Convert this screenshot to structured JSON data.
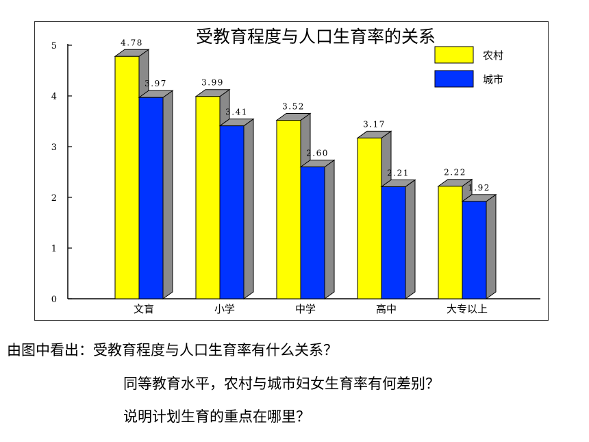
{
  "chart_data": {
    "type": "bar",
    "title": "受教育程度与人口生育率的关系",
    "categories": [
      "文盲",
      "小学",
      "中学",
      "高中",
      "大专以上"
    ],
    "series": [
      {
        "name": "农村",
        "values": [
          4.78,
          3.99,
          3.52,
          3.17,
          2.22
        ],
        "color": "#ffff00"
      },
      {
        "name": "城市",
        "values": [
          3.97,
          3.41,
          2.6,
          2.21,
          1.92
        ],
        "color": "#0033ff"
      }
    ],
    "value_labels": [
      [
        "4.78",
        "3.99",
        "3.52",
        "3.17",
        "2.22"
      ],
      [
        "3.97",
        "3.41",
        "2.60",
        "2.21",
        "1.92"
      ]
    ],
    "y_ticks": [
      "0",
      "1",
      "2",
      "3",
      "4",
      "5"
    ],
    "ylim": [
      0,
      5
    ],
    "xlabel": "",
    "ylabel": "",
    "grid": false,
    "legend_position": "top-right",
    "style": "3d-bars"
  },
  "questions": {
    "lead": "由图中看出：",
    "q1": "受教育程度与人口生育率有什么关系？",
    "q2": "同等教育水平，农村与城市妇女生育率有何差别？",
    "q3": "说明计划生育的重点在哪里？"
  }
}
